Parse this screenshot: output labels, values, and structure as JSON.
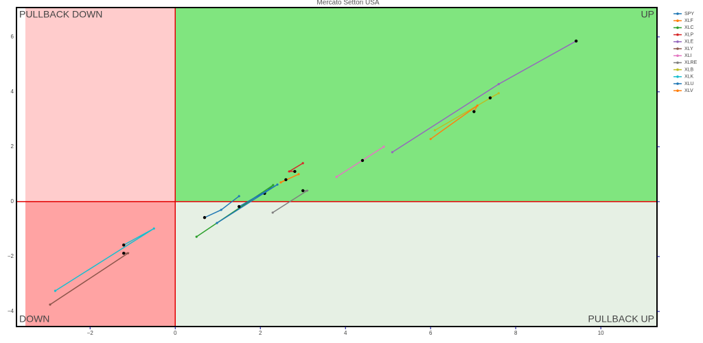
{
  "chart_data": {
    "type": "line",
    "title": "Mercato Settori USA",
    "quadrant_labels": [
      "PULLBACK DOWN",
      "UP",
      "DOWN",
      "PULLBACK UP"
    ],
    "xlim": [
      -3.73,
      11.32
    ],
    "ylim": [
      -4.55,
      7.07
    ],
    "xticks": [
      {
        "value": -2,
        "label": "−2"
      },
      0,
      2,
      4,
      6,
      8,
      10
    ],
    "yticks": [
      {
        "value": -4,
        "label": "−4"
      },
      {
        "value": -2,
        "label": "−2"
      },
      0,
      2,
      4,
      6
    ],
    "marker_color": "#000000",
    "series": [
      {
        "name": "SPY",
        "color": "#1f77b4",
        "x": [
          1.5,
          1.08,
          0.69
        ],
        "y": [
          0.2,
          -0.3,
          -0.58
        ]
      },
      {
        "name": "XLF",
        "color": "#ff7f0e",
        "x": [
          2.9,
          2.48,
          2.6
        ],
        "y": [
          1.0,
          0.7,
          0.8
        ]
      },
      {
        "name": "XLC",
        "color": "#2ca02c",
        "x": [
          0.5,
          2.3,
          2.1
        ],
        "y": [
          -1.28,
          0.6,
          0.3
        ]
      },
      {
        "name": "XLP",
        "color": "#d62728",
        "x": [
          3.0,
          2.68,
          2.81
        ],
        "y": [
          1.4,
          1.1,
          1.1
        ]
      },
      {
        "name": "XLE",
        "color": "#9467bd",
        "x": [
          5.1,
          7.6,
          9.42
        ],
        "y": [
          1.8,
          4.28,
          5.85
        ]
      },
      {
        "name": "XLY",
        "color": "#8c564b",
        "x": [
          -2.94,
          -1.11,
          -1.21
        ],
        "y": [
          -3.75,
          -1.88,
          -1.88
        ]
      },
      {
        "name": "XLI",
        "color": "#e377c2",
        "x": [
          3.79,
          4.9,
          4.4
        ],
        "y": [
          0.9,
          2.0,
          1.5
        ]
      },
      {
        "name": "XLRE",
        "color": "#7f7f7f",
        "x": [
          2.29,
          3.1,
          3.0
        ],
        "y": [
          -0.4,
          0.4,
          0.4
        ]
      },
      {
        "name": "XLB",
        "color": "#bcbd22",
        "x": [
          6.1,
          7.6,
          7.4
        ],
        "y": [
          2.6,
          3.95,
          3.78
        ]
      },
      {
        "name": "XLK",
        "color": "#17becf",
        "x": [
          -2.82,
          -0.5,
          -1.21
        ],
        "y": [
          -3.25,
          -0.98,
          -1.58
        ]
      },
      {
        "name": "XLU",
        "color": "#1f77b4",
        "x": [
          0.98,
          2.4,
          1.5
        ],
        "y": [
          -0.78,
          0.62,
          -0.18
        ]
      },
      {
        "name": "XLV",
        "color": "#ff7f0e",
        "x": [
          6.0,
          7.1,
          7.02
        ],
        "y": [
          2.28,
          3.5,
          3.28
        ]
      }
    ]
  }
}
